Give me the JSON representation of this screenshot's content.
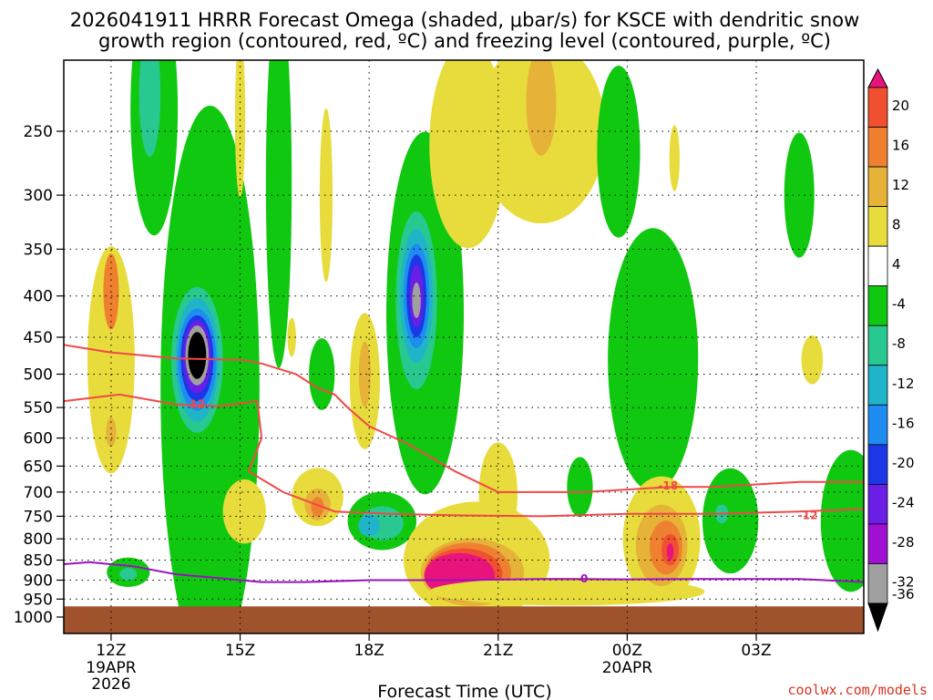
{
  "chart_data": {
    "type": "heatmap",
    "title_line1": "2026041911 HRRR Forecast Omega (shaded, μbar/s) for KSCE with dendritic snow",
    "title_line2": "growth region (contoured, red, ºC) and freezing level (contoured, purple, ºC)",
    "xlabel": "Forecast Time (UTC)",
    "ylabel": "",
    "credit": "coolwx.com/models",
    "x_hours": [
      10.9,
      29.5
    ],
    "x_ticks": [
      {
        "hour": 12,
        "label": "12Z",
        "sub1": "19APR",
        "sub2": "2026"
      },
      {
        "hour": 15,
        "label": "15Z",
        "sub1": "",
        "sub2": ""
      },
      {
        "hour": 18,
        "label": "18Z",
        "sub1": "",
        "sub2": ""
      },
      {
        "hour": 21,
        "label": "21Z",
        "sub1": "",
        "sub2": ""
      },
      {
        "hour": 24,
        "label": "00Z",
        "sub1": "20APR",
        "sub2": ""
      },
      {
        "hour": 27,
        "label": "03Z",
        "sub1": "",
        "sub2": ""
      }
    ],
    "pressure_levels": [
      {
        "p": 250,
        "label": "250"
      },
      {
        "p": 300,
        "label": "300"
      },
      {
        "p": 350,
        "label": "350"
      },
      {
        "p": 400,
        "label": "400"
      },
      {
        "p": 450,
        "label": "450"
      },
      {
        "p": 500,
        "label": "500"
      },
      {
        "p": 550,
        "label": "550"
      },
      {
        "p": 600,
        "label": "600"
      },
      {
        "p": 650,
        "label": "650"
      },
      {
        "p": 700,
        "label": "700"
      },
      {
        "p": 750,
        "label": "750"
      },
      {
        "p": 800,
        "label": "800"
      },
      {
        "p": 850,
        "label": "850"
      },
      {
        "p": 900,
        "label": "900"
      },
      {
        "p": 950,
        "label": "950"
      },
      {
        "p": 1000,
        "label": "1000"
      }
    ],
    "y_range": [
      200,
      1030
    ],
    "surface_pressure": 970,
    "colorbar": {
      "labels": [
        "20",
        "16",
        "12",
        "8",
        "4",
        "-4",
        "-8",
        "-12",
        "-16",
        "-20",
        "-24",
        "-28",
        "-32",
        "-36"
      ],
      "bins": [
        {
          "color": "#e8147c"
        },
        {
          "color": "#f05030"
        },
        {
          "color": "#ee8030"
        },
        {
          "color": "#e6b238"
        },
        {
          "color": "#e8dc3c"
        },
        {
          "color": "#ffffff"
        },
        {
          "color": "#10c810"
        },
        {
          "color": "#28c890"
        },
        {
          "color": "#20b4c8"
        },
        {
          "color": "#1e8cf0"
        },
        {
          "color": "#1c38e6"
        },
        {
          "color": "#6a1ee6"
        },
        {
          "color": "#a010d2"
        },
        {
          "color": "#a0a0a0"
        },
        {
          "color": "#000000"
        }
      ]
    },
    "colors": {
      "yellow": "#e8dc3c",
      "gold": "#e6b238",
      "orange": "#ee8030",
      "red": "#f05030",
      "magenta": "#e8147c",
      "green": "#10c810",
      "teal": "#28c890",
      "cyan": "#20b4c8",
      "lightblue": "#1e8cf0",
      "blue": "#1c38e6",
      "indigo": "#6a1ee6",
      "purple": "#a010d2",
      "gray": "#a0a0a0",
      "black": "#000000",
      "ground": "#a0522d",
      "dgz_contour": "#f04848",
      "freezing_contour": "#9a10c0"
    },
    "omega_regions": [
      {
        "cx": 12.0,
        "cp": 480,
        "rx": 0.55,
        "rp": 160,
        "value": 4
      },
      {
        "cx": 12.0,
        "cp": 395,
        "rx": 0.18,
        "rp": 50,
        "value": 12
      },
      {
        "cx": 12.0,
        "cp": 590,
        "rx": 0.12,
        "rp": 30,
        "value": 8
      },
      {
        "cx": 12.4,
        "cp": 880,
        "rx": 0.5,
        "rp": 45,
        "value": -8
      },
      {
        "cx": 12.4,
        "cp": 885,
        "rx": 0.2,
        "rp": 20,
        "value": -12
      },
      {
        "cx": 14.3,
        "cp": 520,
        "rx": 1.15,
        "rp": 330,
        "value": -4
      },
      {
        "cx": 14.0,
        "cp": 500,
        "rx": 0.75,
        "rp": 170,
        "value": -8
      },
      {
        "cx": 14.0,
        "cp": 480,
        "rx": 0.6,
        "rp": 110,
        "value": -12
      },
      {
        "cx": 14.0,
        "cp": 480,
        "rx": 0.5,
        "rp": 95,
        "value": -16
      },
      {
        "cx": 14.0,
        "cp": 480,
        "rx": 0.45,
        "rp": 80,
        "value": -20
      },
      {
        "cx": 14.0,
        "cp": 478,
        "rx": 0.38,
        "rp": 68,
        "value": -24
      },
      {
        "cx": 14.0,
        "cp": 476,
        "rx": 0.32,
        "rp": 58,
        "value": -28
      },
      {
        "cx": 14.0,
        "cp": 474,
        "rx": 0.27,
        "rp": 48,
        "value": -32
      },
      {
        "cx": 14.0,
        "cp": 474,
        "rx": 0.21,
        "rp": 38,
        "value": -36
      },
      {
        "cx": 13.0,
        "cp": 235,
        "rx": 0.55,
        "rp": 90,
        "value": -8
      },
      {
        "cx": 12.9,
        "cp": 225,
        "rx": 0.25,
        "rp": 45,
        "value": -12
      },
      {
        "cx": 15.9,
        "cp": 290,
        "rx": 0.3,
        "rp": 230,
        "value": -4
      },
      {
        "cx": 15.0,
        "cp": 240,
        "rx": 0.12,
        "rp": 60,
        "value": 4
      },
      {
        "cx": 19.3,
        "cp": 420,
        "rx": 0.9,
        "rp": 200,
        "value": -4
      },
      {
        "cx": 19.1,
        "cp": 410,
        "rx": 0.62,
        "rp": 150,
        "value": -8
      },
      {
        "cx": 19.1,
        "cp": 405,
        "rx": 0.48,
        "rp": 110,
        "value": -12
      },
      {
        "cx": 19.1,
        "cp": 400,
        "rx": 0.38,
        "rp": 85,
        "value": -16
      },
      {
        "cx": 19.1,
        "cp": 400,
        "rx": 0.3,
        "rp": 68,
        "value": -20
      },
      {
        "cx": 19.1,
        "cp": 400,
        "rx": 0.23,
        "rp": 55,
        "value": -24
      },
      {
        "cx": 19.1,
        "cp": 400,
        "rx": 0.16,
        "rp": 42,
        "value": -28
      },
      {
        "cx": 19.1,
        "cp": 405,
        "rx": 0.1,
        "rp": 25,
        "value": -32
      },
      {
        "cx": 17.0,
        "cp": 300,
        "rx": 0.15,
        "rp": 80,
        "value": 4
      },
      {
        "cx": 17.9,
        "cp": 510,
        "rx": 0.35,
        "rp": 110,
        "value": 4
      },
      {
        "cx": 17.9,
        "cp": 500,
        "rx": 0.14,
        "rp": 55,
        "value": 8
      },
      {
        "cx": 16.9,
        "cp": 500,
        "rx": 0.3,
        "rp": 60,
        "value": -8
      },
      {
        "cx": 16.2,
        "cp": 450,
        "rx": 0.1,
        "rp": 30,
        "value": 4
      },
      {
        "cx": 20.3,
        "cp": 260,
        "rx": 0.9,
        "rp": 80,
        "value": 4
      },
      {
        "cx": 22.0,
        "cp": 250,
        "rx": 1.5,
        "rp": 70,
        "value": 4
      },
      {
        "cx": 22.0,
        "cp": 230,
        "rx": 0.35,
        "rp": 40,
        "value": 8
      },
      {
        "cx": 23.8,
        "cp": 265,
        "rx": 0.5,
        "rp": 70,
        "value": -8
      },
      {
        "cx": 25.1,
        "cp": 270,
        "rx": 0.12,
        "rp": 30,
        "value": 4
      },
      {
        "cx": 24.6,
        "cp": 480,
        "rx": 1.05,
        "rp": 180,
        "value": -8
      },
      {
        "cx": 28.0,
        "cp": 300,
        "rx": 0.35,
        "rp": 60,
        "value": -8
      },
      {
        "cx": 28.3,
        "cp": 480,
        "rx": 0.25,
        "rp": 40,
        "value": 4
      },
      {
        "cx": 16.8,
        "cp": 710,
        "rx": 0.6,
        "rp": 70,
        "value": 4
      },
      {
        "cx": 16.8,
        "cp": 725,
        "rx": 0.3,
        "rp": 40,
        "value": 8
      },
      {
        "cx": 16.8,
        "cp": 730,
        "rx": 0.15,
        "rp": 25,
        "value": 12
      },
      {
        "cx": 18.3,
        "cp": 760,
        "rx": 0.8,
        "rp": 75,
        "value": -8
      },
      {
        "cx": 18.3,
        "cp": 765,
        "rx": 0.5,
        "rp": 45,
        "value": -12
      },
      {
        "cx": 18.0,
        "cp": 770,
        "rx": 0.25,
        "rp": 30,
        "value": -16
      },
      {
        "cx": 15.1,
        "cp": 740,
        "rx": 0.5,
        "rp": 80,
        "value": 4
      },
      {
        "cx": 20.5,
        "cp": 850,
        "rx": 1.7,
        "rp": 160,
        "value": 4
      },
      {
        "cx": 21.0,
        "cp": 705,
        "rx": 0.45,
        "rp": 120,
        "value": 4
      },
      {
        "cx": 20.4,
        "cp": 880,
        "rx": 1.2,
        "rp": 100,
        "value": 8
      },
      {
        "cx": 20.3,
        "cp": 880,
        "rx": 1.0,
        "rp": 88,
        "value": 12
      },
      {
        "cx": 20.2,
        "cp": 885,
        "rx": 0.9,
        "rp": 78,
        "value": 16
      },
      {
        "cx": 20.1,
        "cp": 888,
        "rx": 0.82,
        "rp": 68,
        "value": 20
      },
      {
        "cx": 22.6,
        "cp": 930,
        "rx": 3.2,
        "rp": 45,
        "value": 4
      },
      {
        "cx": 24.8,
        "cp": 800,
        "rx": 0.9,
        "rp": 160,
        "value": 4
      },
      {
        "cx": 24.8,
        "cp": 815,
        "rx": 0.6,
        "rp": 110,
        "value": 8
      },
      {
        "cx": 24.9,
        "cp": 820,
        "rx": 0.38,
        "rp": 75,
        "value": 12
      },
      {
        "cx": 25.0,
        "cp": 825,
        "rx": 0.2,
        "rp": 45,
        "value": 16
      },
      {
        "cx": 25.0,
        "cp": 830,
        "rx": 0.08,
        "rp": 25,
        "value": 20
      },
      {
        "cx": 22.9,
        "cp": 690,
        "rx": 0.3,
        "rp": 70,
        "value": -8
      },
      {
        "cx": 26.4,
        "cp": 760,
        "rx": 0.65,
        "rp": 130,
        "value": -8
      },
      {
        "cx": 26.2,
        "cp": 745,
        "rx": 0.15,
        "rp": 25,
        "value": -12
      },
      {
        "cx": 29.2,
        "cp": 760,
        "rx": 0.7,
        "rp": 170,
        "value": -8
      }
    ],
    "dgz_contours": [
      {
        "label": "-12",
        "label_at": [
          13.95,
          545
        ],
        "points": [
          [
            10.9,
            540
          ],
          [
            12.2,
            530
          ],
          [
            13.5,
            545
          ],
          [
            14.5,
            548
          ],
          [
            15.4,
            540
          ],
          [
            15.5,
            600
          ],
          [
            15.2,
            660
          ],
          [
            16.0,
            700
          ],
          [
            17.2,
            740
          ],
          [
            18.5,
            745
          ],
          [
            20.0,
            748
          ],
          [
            22.0,
            750
          ],
          [
            24.0,
            745
          ],
          [
            26.0,
            745
          ],
          [
            28.0,
            740
          ],
          [
            29.5,
            735
          ]
        ]
      },
      {
        "label": "-18",
        "label_at": [
          24.95,
          688
        ],
        "points": [
          [
            10.9,
            460
          ],
          [
            12.0,
            470
          ],
          [
            13.5,
            478
          ],
          [
            15.0,
            480
          ],
          [
            15.5,
            485
          ],
          [
            16.3,
            500
          ],
          [
            16.8,
            520
          ],
          [
            17.2,
            530
          ],
          [
            17.5,
            550
          ],
          [
            18.0,
            580
          ],
          [
            18.9,
            610
          ],
          [
            20.0,
            660
          ],
          [
            21.0,
            700
          ],
          [
            23.0,
            700
          ],
          [
            24.0,
            695
          ],
          [
            25.0,
            690
          ],
          [
            26.0,
            690
          ],
          [
            28.0,
            680
          ],
          [
            29.5,
            680
          ]
        ]
      },
      {
        "label": "-12",
        "label_at": [
          28.2,
          748
        ],
        "points": []
      }
    ],
    "freezing_contours": [
      {
        "label": "0",
        "label_at": [
          23.0,
          897
        ],
        "points": [
          [
            10.9,
            860
          ],
          [
            11.5,
            855
          ],
          [
            12.5,
            865
          ],
          [
            13.5,
            885
          ],
          [
            14.5,
            895
          ],
          [
            15.5,
            905
          ],
          [
            16.5,
            905
          ],
          [
            18.0,
            900
          ],
          [
            20.0,
            900
          ],
          [
            22.0,
            897
          ],
          [
            24.0,
            898
          ],
          [
            26.0,
            897
          ],
          [
            28.0,
            897
          ],
          [
            29.5,
            905
          ]
        ]
      }
    ]
  }
}
